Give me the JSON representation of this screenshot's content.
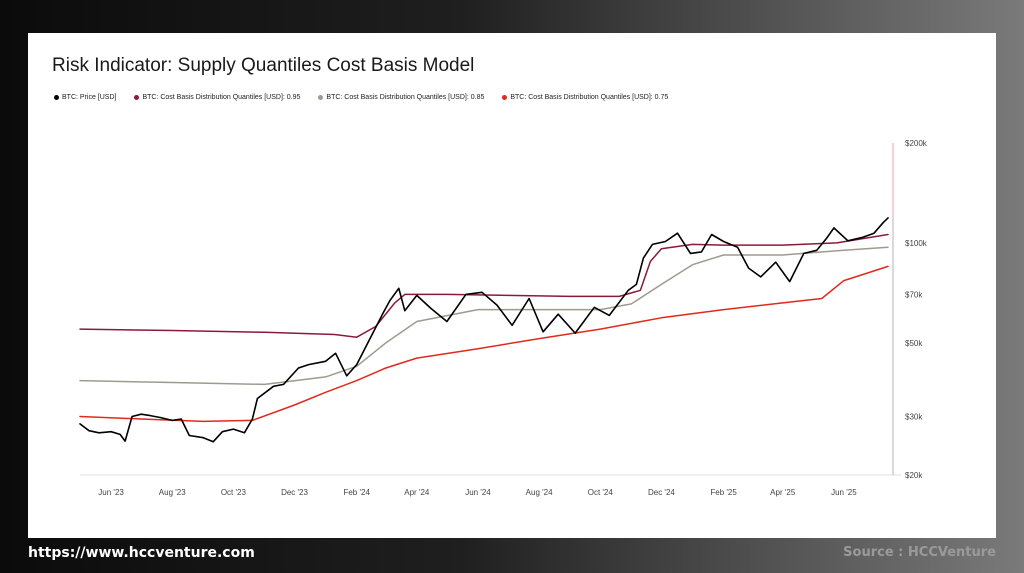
{
  "footer": {
    "url": "https://www.hccventure.com",
    "source": "Source : HCCVenture"
  },
  "chart_data": {
    "type": "line",
    "title": "Risk Indicator: Supply Quantiles Cost Basis Model",
    "y_scale": "log",
    "ylim": [
      20000,
      200000
    ],
    "y_ticks": [
      {
        "value": 200000,
        "label": "$200k"
      },
      {
        "value": 100000,
        "label": "$100k"
      },
      {
        "value": 70000,
        "label": "$70k"
      },
      {
        "value": 50000,
        "label": "$50k"
      },
      {
        "value": 30000,
        "label": "$30k"
      },
      {
        "value": 20000,
        "label": "$20k"
      }
    ],
    "xlim": [
      "2023-05-01",
      "2025-07-20"
    ],
    "x_ticks": [
      {
        "value": "2023-06-01",
        "label": "Jun '23"
      },
      {
        "value": "2023-08-01",
        "label": "Aug '23"
      },
      {
        "value": "2023-10-01",
        "label": "Oct '23"
      },
      {
        "value": "2023-12-01",
        "label": "Dec '23"
      },
      {
        "value": "2024-02-01",
        "label": "Feb '24"
      },
      {
        "value": "2024-04-01",
        "label": "Apr '24"
      },
      {
        "value": "2024-06-01",
        "label": "Jun '24"
      },
      {
        "value": "2024-08-01",
        "label": "Aug '24"
      },
      {
        "value": "2024-10-01",
        "label": "Oct '24"
      },
      {
        "value": "2024-12-01",
        "label": "Dec '24"
      },
      {
        "value": "2025-02-01",
        "label": "Feb '25"
      },
      {
        "value": "2025-04-01",
        "label": "Apr '25"
      },
      {
        "value": "2025-06-01",
        "label": "Jun '25"
      }
    ],
    "grid": false,
    "legend_position": "top-left",
    "series": [
      {
        "name": "BTC: Price [USD]",
        "color": "#000000",
        "points": [
          [
            "2023-05-01",
            28500
          ],
          [
            "2023-05-10",
            27200
          ],
          [
            "2023-05-20",
            26800
          ],
          [
            "2023-06-01",
            27000
          ],
          [
            "2023-06-10",
            26500
          ],
          [
            "2023-06-15",
            25300
          ],
          [
            "2023-06-22",
            30000
          ],
          [
            "2023-07-01",
            30500
          ],
          [
            "2023-07-10",
            30200
          ],
          [
            "2023-07-20",
            29800
          ],
          [
            "2023-08-01",
            29200
          ],
          [
            "2023-08-10",
            29500
          ],
          [
            "2023-08-18",
            26300
          ],
          [
            "2023-09-01",
            25900
          ],
          [
            "2023-09-11",
            25200
          ],
          [
            "2023-09-20",
            27000
          ],
          [
            "2023-10-01",
            27500
          ],
          [
            "2023-10-12",
            26800
          ],
          [
            "2023-10-20",
            29500
          ],
          [
            "2023-10-25",
            34000
          ],
          [
            "2023-11-10",
            37000
          ],
          [
            "2023-11-20",
            37500
          ],
          [
            "2023-12-05",
            42000
          ],
          [
            "2023-12-15",
            43000
          ],
          [
            "2024-01-01",
            44000
          ],
          [
            "2024-01-11",
            46500
          ],
          [
            "2024-01-22",
            39800
          ],
          [
            "2024-02-01",
            43000
          ],
          [
            "2024-02-15",
            52000
          ],
          [
            "2024-02-28",
            62000
          ],
          [
            "2024-03-05",
            67000
          ],
          [
            "2024-03-14",
            73000
          ],
          [
            "2024-03-20",
            62500
          ],
          [
            "2024-04-01",
            69500
          ],
          [
            "2024-04-15",
            63500
          ],
          [
            "2024-05-01",
            58000
          ],
          [
            "2024-05-20",
            70000
          ],
          [
            "2024-06-05",
            71000
          ],
          [
            "2024-06-20",
            65000
          ],
          [
            "2024-07-05",
            56500
          ],
          [
            "2024-07-22",
            68000
          ],
          [
            "2024-08-05",
            54000
          ],
          [
            "2024-08-20",
            61000
          ],
          [
            "2024-09-06",
            53500
          ],
          [
            "2024-09-25",
            64000
          ],
          [
            "2024-10-10",
            60500
          ],
          [
            "2024-10-29",
            72000
          ],
          [
            "2024-11-06",
            75000
          ],
          [
            "2024-11-13",
            90000
          ],
          [
            "2024-11-22",
            99000
          ],
          [
            "2024-12-05",
            101000
          ],
          [
            "2024-12-17",
            107000
          ],
          [
            "2024-12-30",
            93000
          ],
          [
            "2025-01-10",
            94000
          ],
          [
            "2025-01-20",
            106000
          ],
          [
            "2025-02-01",
            101000
          ],
          [
            "2025-02-15",
            97000
          ],
          [
            "2025-02-26",
            84000
          ],
          [
            "2025-03-10",
            79000
          ],
          [
            "2025-03-25",
            87500
          ],
          [
            "2025-04-08",
            76500
          ],
          [
            "2025-04-22",
            93000
          ],
          [
            "2025-05-05",
            95000
          ],
          [
            "2025-05-15",
            103500
          ],
          [
            "2025-05-22",
            111000
          ],
          [
            "2025-06-05",
            101500
          ],
          [
            "2025-06-20",
            104000
          ],
          [
            "2025-07-01",
            107000
          ],
          [
            "2025-07-10",
            115000
          ],
          [
            "2025-07-15",
            119000
          ]
        ]
      },
      {
        "name": "BTC: Cost Basis Distribution Quantiles [USD]: 0.95",
        "color": "#8b1a3a",
        "points": [
          [
            "2023-05-01",
            55000
          ],
          [
            "2023-08-01",
            54500
          ],
          [
            "2023-11-01",
            53800
          ],
          [
            "2024-01-10",
            53000
          ],
          [
            "2024-02-01",
            52000
          ],
          [
            "2024-02-20",
            56000
          ],
          [
            "2024-03-10",
            66000
          ],
          [
            "2024-03-20",
            70000
          ],
          [
            "2024-05-01",
            70000
          ],
          [
            "2024-07-01",
            69500
          ],
          [
            "2024-09-01",
            69000
          ],
          [
            "2024-10-20",
            69000
          ],
          [
            "2024-11-10",
            72000
          ],
          [
            "2024-11-20",
            88000
          ],
          [
            "2024-12-01",
            96000
          ],
          [
            "2025-01-01",
            99000
          ],
          [
            "2025-02-01",
            98500
          ],
          [
            "2025-04-01",
            98500
          ],
          [
            "2025-05-25",
            100000
          ],
          [
            "2025-07-15",
            106000
          ]
        ]
      },
      {
        "name": "BTC: Cost Basis Distribution Quantiles [USD]: 0.85",
        "color": "#9e9a8e",
        "points": [
          [
            "2023-05-01",
            38500
          ],
          [
            "2023-08-01",
            38000
          ],
          [
            "2023-11-01",
            37500
          ],
          [
            "2024-01-01",
            39500
          ],
          [
            "2024-02-01",
            42500
          ],
          [
            "2024-03-01",
            50000
          ],
          [
            "2024-04-01",
            58000
          ],
          [
            "2024-06-01",
            63000
          ],
          [
            "2024-08-01",
            63000
          ],
          [
            "2024-10-01",
            63000
          ],
          [
            "2024-11-01",
            65500
          ],
          [
            "2024-12-01",
            75000
          ],
          [
            "2025-01-01",
            86000
          ],
          [
            "2025-02-01",
            92000
          ],
          [
            "2025-04-01",
            92000
          ],
          [
            "2025-05-01",
            93500
          ],
          [
            "2025-06-01",
            95000
          ],
          [
            "2025-07-15",
            97000
          ]
        ]
      },
      {
        "name": "BTC: Cost Basis Distribution Quantiles [USD]: 0.75",
        "color": "#e0291f",
        "points": [
          [
            "2023-05-01",
            30000
          ],
          [
            "2023-07-01",
            29500
          ],
          [
            "2023-09-01",
            29000
          ],
          [
            "2023-10-20",
            29200
          ],
          [
            "2023-12-01",
            32500
          ],
          [
            "2024-01-01",
            35500
          ],
          [
            "2024-02-01",
            38500
          ],
          [
            "2024-03-01",
            42000
          ],
          [
            "2024-04-01",
            45000
          ],
          [
            "2024-06-01",
            48000
          ],
          [
            "2024-08-01",
            51500
          ],
          [
            "2024-10-01",
            55000
          ],
          [
            "2024-12-01",
            59500
          ],
          [
            "2025-02-01",
            63000
          ],
          [
            "2025-04-01",
            66000
          ],
          [
            "2025-05-10",
            68000
          ],
          [
            "2025-06-01",
            77000
          ],
          [
            "2025-07-15",
            85000
          ]
        ]
      }
    ]
  }
}
